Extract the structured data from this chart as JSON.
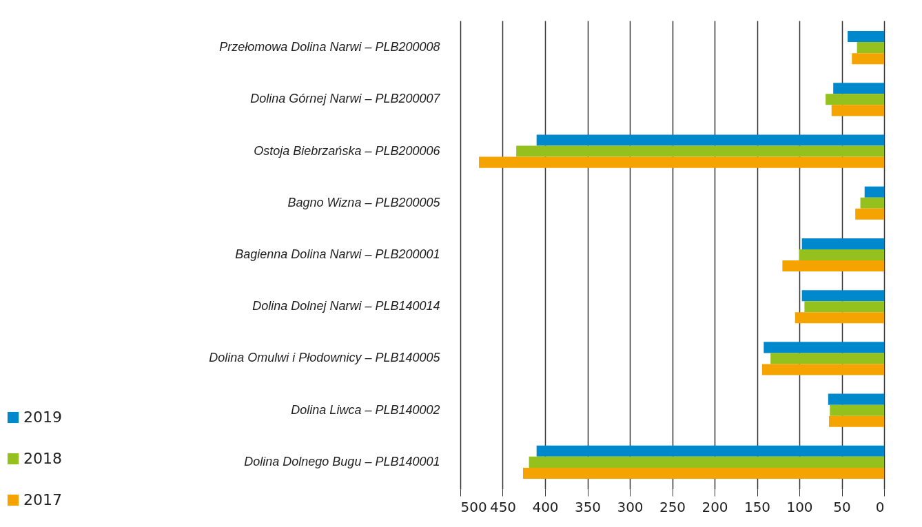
{
  "chart_data": {
    "type": "bar",
    "orientation": "horizontal",
    "categories": [
      "Przełomowa Dolina Narwi – PLB200008",
      "Dolina Górnej Narwi – PLB200007",
      "Ostoja Biebrzańska – PLB200006",
      "Bagno Wizna – PLB200005",
      "Bagienna Dolina Narwi – PLB200001",
      "Dolina Dolnej Narwi – PLB140014",
      "Dolina Omulwi i Płodownicy – PLB140005",
      "Dolina Liwca – PLB140002",
      "Dolina Dolnego Bugu – PLB140001"
    ],
    "series": [
      {
        "name": "2019",
        "color": "#0088cc",
        "values": [
          43,
          60,
          410,
          23,
          97,
          97,
          142,
          66,
          410
        ]
      },
      {
        "name": "2018",
        "color": "#95c11f",
        "values": [
          32,
          69,
          434,
          28,
          100,
          94,
          134,
          64,
          419
        ]
      },
      {
        "name": "2017",
        "color": "#f5a300",
        "values": [
          38,
          62,
          478,
          34,
          120,
          105,
          144,
          65,
          426
        ]
      }
    ],
    "xlim": [
      500,
      0
    ],
    "xticks": [
      500,
      450,
      400,
      350,
      300,
      250,
      200,
      150,
      100,
      50,
      0
    ],
    "grid": "x",
    "legend": "bottom left"
  }
}
